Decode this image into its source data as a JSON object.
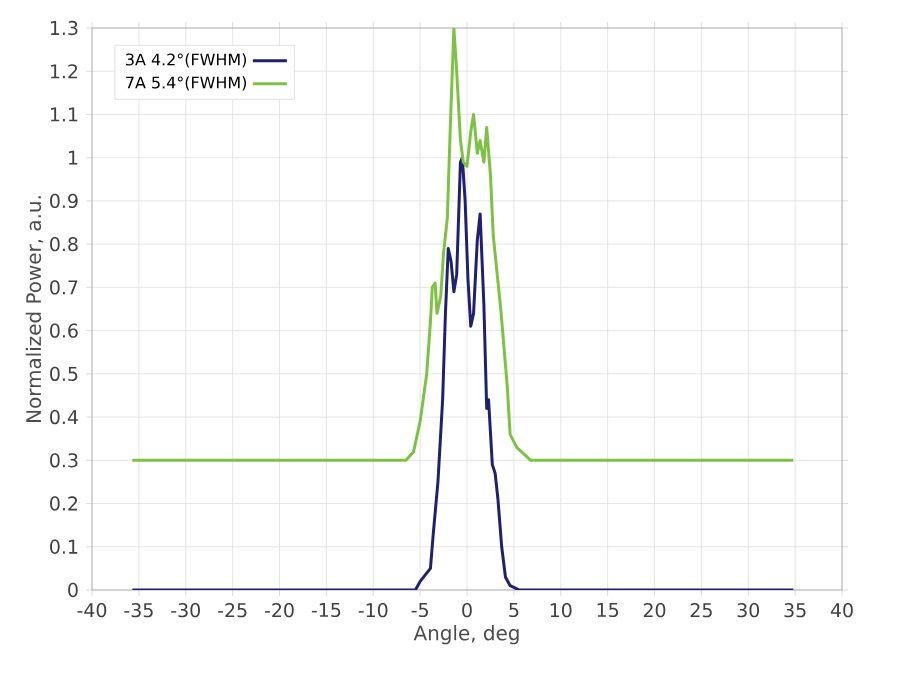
{
  "chart_data": {
    "type": "line",
    "xlabel": "Angle, deg",
    "ylabel": "Normalized Power, a.u.",
    "xlim": [
      -40,
      40
    ],
    "ylim": [
      0,
      1.3
    ],
    "xticks": [
      -40,
      -35,
      -30,
      -25,
      -20,
      -15,
      -10,
      -5,
      0,
      5,
      10,
      15,
      20,
      25,
      30,
      35,
      40
    ],
    "yticks": [
      0,
      0.1,
      0.2,
      0.3,
      0.4,
      0.5,
      0.6,
      0.7,
      0.8,
      0.9,
      1,
      1.1,
      1.2,
      1.3
    ],
    "grid": true,
    "legend": "top left",
    "marker": "none",
    "line_style": "solid",
    "series": [
      {
        "name": "3A 4.2°(FWHM)",
        "color": "#1f2070",
        "x": [
          -35.7,
          -5.5,
          -5.0,
          -3.9,
          -3.6,
          -3.1,
          -2.6,
          -2.3,
          -2.0,
          -1.7,
          -1.4,
          -1.1,
          -0.7,
          -0.5,
          -0.2,
          0.1,
          0.4,
          0.7,
          1.1,
          1.4,
          1.8,
          2.1,
          2.3,
          2.7,
          3.0,
          3.3,
          3.7,
          4.1,
          4.6,
          5.6,
          34.8
        ],
        "values": [
          0,
          0,
          0.02,
          0.05,
          0.13,
          0.25,
          0.44,
          0.64,
          0.79,
          0.76,
          0.69,
          0.73,
          0.99,
          1.0,
          0.9,
          0.72,
          0.61,
          0.64,
          0.81,
          0.87,
          0.66,
          0.42,
          0.44,
          0.29,
          0.27,
          0.21,
          0.1,
          0.03,
          0.01,
          0,
          0
        ]
      },
      {
        "name": "7A 5.4°(FWHM)",
        "color": "#7dc242",
        "x": [
          -35.7,
          -6.5,
          -5.7,
          -5.0,
          -4.3,
          -3.9,
          -3.7,
          -3.4,
          -3.2,
          -2.8,
          -2.5,
          -2.1,
          -1.8,
          -1.4,
          -1.1,
          -0.7,
          -0.4,
          0,
          0.4,
          0.7,
          1.1,
          1.4,
          1.8,
          2.1,
          2.5,
          2.8,
          3.6,
          4.3,
          4.6,
          5.3,
          6.8,
          34.8
        ],
        "values": [
          0.3,
          0.3,
          0.32,
          0.39,
          0.5,
          0.62,
          0.7,
          0.71,
          0.64,
          0.68,
          0.78,
          0.86,
          1.06,
          1.3,
          1.2,
          1.04,
          0.99,
          0.98,
          1.06,
          1.1,
          1.01,
          1.04,
          0.99,
          1.07,
          0.96,
          0.82,
          0.65,
          0.47,
          0.36,
          0.33,
          0.3,
          0.3
        ]
      }
    ]
  }
}
